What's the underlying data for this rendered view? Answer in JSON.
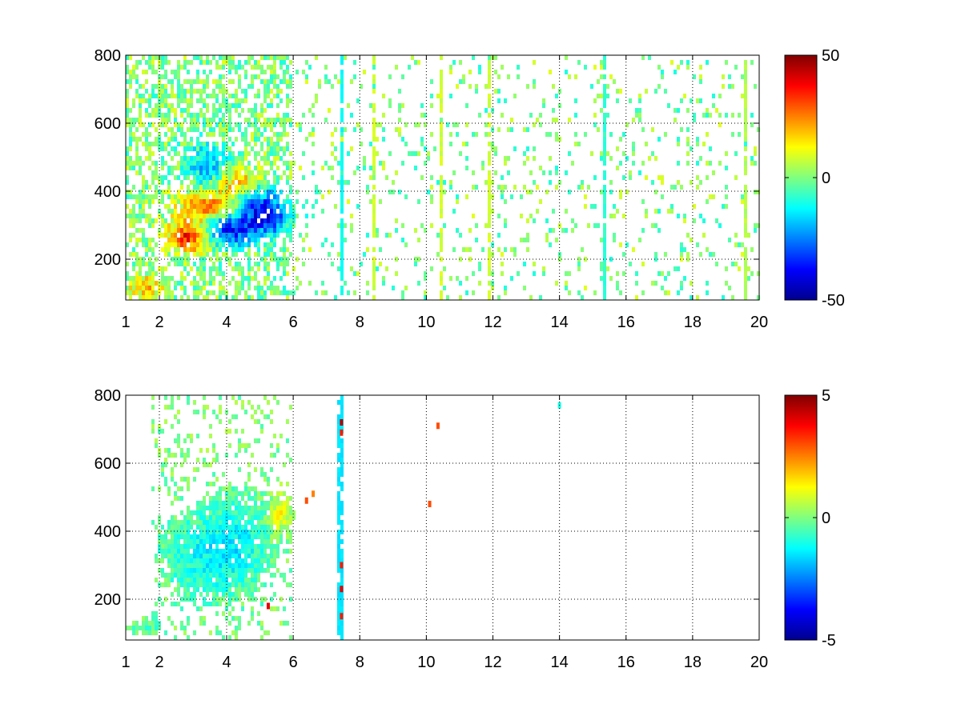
{
  "chart_data": [
    {
      "type": "heatmap",
      "title": "",
      "xlabel": "",
      "ylabel": "",
      "xlim": [
        1,
        20
      ],
      "ylim": [
        80,
        800
      ],
      "x_scale": "linear-with-edge-ticks",
      "x_ticks": [
        {
          "value": 1,
          "label": "1"
        },
        {
          "value": 2,
          "label": "2"
        },
        {
          "value": 4,
          "label": "4"
        },
        {
          "value": 6,
          "label": "6"
        },
        {
          "value": 8,
          "label": "8"
        },
        {
          "value": 10,
          "label": "10"
        },
        {
          "value": 12,
          "label": "12"
        },
        {
          "value": 14,
          "label": "14"
        },
        {
          "value": 16,
          "label": "16"
        },
        {
          "value": 18,
          "label": "18"
        },
        {
          "value": 20,
          "label": "20"
        }
      ],
      "y_ticks": [
        {
          "value": 200,
          "label": "200"
        },
        {
          "value": 400,
          "label": "400"
        },
        {
          "value": 600,
          "label": "600"
        },
        {
          "value": 800,
          "label": "800"
        }
      ],
      "grid": "dotted",
      "colormap": "jet",
      "clim": [
        -50,
        50
      ],
      "colorbar_ticks": [
        {
          "value": 50,
          "label": "50"
        },
        {
          "value": 0,
          "label": "0"
        },
        {
          "value": -50,
          "label": "-50"
        }
      ],
      "blobs": [
        {
          "x": 2.9,
          "y": 265,
          "v": 38,
          "sx": 0.45,
          "sy": 30
        },
        {
          "x": 3.6,
          "y": 350,
          "v": 32,
          "sx": 0.7,
          "sy": 35
        },
        {
          "x": 4.3,
          "y": 420,
          "v": 26,
          "sx": 0.5,
          "sy": 40
        },
        {
          "x": 1.6,
          "y": 120,
          "v": 18,
          "sx": 0.4,
          "sy": 25
        },
        {
          "x": 4.0,
          "y": 290,
          "v": -38,
          "sx": 0.6,
          "sy": 35
        },
        {
          "x": 4.7,
          "y": 370,
          "v": -30,
          "sx": 0.6,
          "sy": 40
        },
        {
          "x": 3.5,
          "y": 470,
          "v": -20,
          "sx": 0.5,
          "sy": 50
        },
        {
          "x": 5.3,
          "y": 320,
          "v": -24,
          "sx": 0.5,
          "sy": 40
        }
      ],
      "stripes": [
        {
          "x": 7.5,
          "v": -12
        },
        {
          "x": 8.5,
          "v": 8
        },
        {
          "x": 10.4,
          "v": 8
        },
        {
          "x": 11.9,
          "v": 8
        },
        {
          "x": 15.3,
          "v": -8
        },
        {
          "x": 19.6,
          "v": 5
        }
      ],
      "speckle": {
        "dense_range": [
          1,
          6
        ],
        "density_dense": 0.55,
        "density_sparse": 0.12,
        "amplitude": 10
      },
      "seed": 7
    },
    {
      "type": "heatmap",
      "title": "",
      "xlabel": "",
      "ylabel": "",
      "xlim": [
        1,
        20
      ],
      "ylim": [
        80,
        800
      ],
      "x_scale": "linear-with-edge-ticks",
      "x_ticks": [
        {
          "value": 1,
          "label": "1"
        },
        {
          "value": 2,
          "label": "2"
        },
        {
          "value": 4,
          "label": "4"
        },
        {
          "value": 6,
          "label": "6"
        },
        {
          "value": 8,
          "label": "8"
        },
        {
          "value": 10,
          "label": "10"
        },
        {
          "value": 12,
          "label": "12"
        },
        {
          "value": 14,
          "label": "14"
        },
        {
          "value": 16,
          "label": "16"
        },
        {
          "value": 18,
          "label": "18"
        },
        {
          "value": 20,
          "label": "20"
        }
      ],
      "y_ticks": [
        {
          "value": 200,
          "label": "200"
        },
        {
          "value": 400,
          "label": "400"
        },
        {
          "value": 600,
          "label": "600"
        },
        {
          "value": 800,
          "label": "800"
        }
      ],
      "grid": "dotted",
      "colormap": "jet",
      "clim": [
        -5,
        5
      ],
      "colorbar_ticks": [
        {
          "value": 5,
          "label": "5"
        },
        {
          "value": 0,
          "label": "0"
        },
        {
          "value": -5,
          "label": "-5"
        }
      ],
      "blobs": [
        {
          "x": 3.4,
          "y": 330,
          "v": -1.2,
          "sx": 0.9,
          "sy": 90
        },
        {
          "x": 4.5,
          "y": 380,
          "v": -0.8,
          "sx": 0.6,
          "sy": 90
        },
        {
          "x": 1.6,
          "y": 120,
          "v": -0.6,
          "sx": 0.35,
          "sy": 15
        },
        {
          "x": 5.6,
          "y": 450,
          "v": 1.2,
          "sx": 0.25,
          "sy": 40
        }
      ],
      "accents": [
        {
          "x": 7.45,
          "y": 720,
          "v": 4.5
        },
        {
          "x": 7.45,
          "y": 690,
          "v": 3.5
        },
        {
          "x": 7.45,
          "y": 300,
          "v": 3.5
        },
        {
          "x": 7.45,
          "y": 230,
          "v": 4.0
        },
        {
          "x": 7.45,
          "y": 150,
          "v": 3.5
        },
        {
          "x": 5.25,
          "y": 180,
          "v": 4.0
        },
        {
          "x": 10.35,
          "y": 710,
          "v": 3.0
        },
        {
          "x": 10.1,
          "y": 480,
          "v": 3.0
        },
        {
          "x": 6.4,
          "y": 490,
          "v": 3.0
        },
        {
          "x": 6.6,
          "y": 510,
          "v": 2.5
        },
        {
          "x": 14.0,
          "y": 770,
          "v": -1.0
        }
      ],
      "stripes": [
        {
          "x": 7.45,
          "v": -1.5
        },
        {
          "x": 10.35,
          "v": 0.0
        }
      ],
      "speckle": {
        "dense_range": [
          1.8,
          6
        ],
        "density_dense": 0.22,
        "density_sparse": 0.0,
        "amplitude": 0.6
      },
      "seed": 11
    }
  ]
}
